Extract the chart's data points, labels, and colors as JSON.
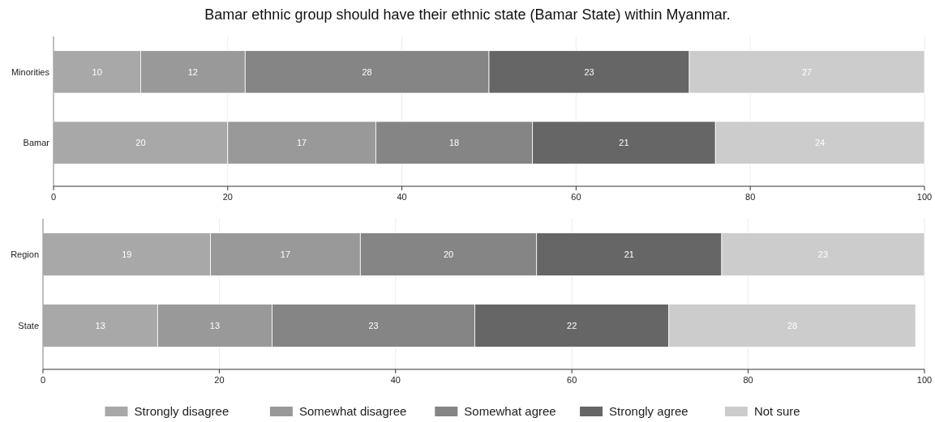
{
  "chart_data": [
    {
      "type": "bar",
      "title": "Bamar ethnic group should have their ethnic state (Bamar State) within Myanmar.",
      "orientation": "horizontal",
      "stacked": true,
      "categories": [
        "Minorities",
        "Bamar"
      ],
      "xlim": [
        0,
        100
      ],
      "xticks": [
        0,
        20,
        40,
        60,
        80,
        100
      ],
      "grid": "x",
      "legend": false,
      "data_labels": true,
      "series": [
        {
          "color": "#a8a8a8",
          "values": [
            10,
            20
          ]
        },
        {
          "color": "#999999",
          "values": [
            12,
            17
          ]
        },
        {
          "color": "#858585",
          "values": [
            28,
            18
          ]
        },
        {
          "color": "#666666",
          "values": [
            23,
            21
          ]
        },
        {
          "color": "#cccccc",
          "values": [
            27,
            24
          ]
        }
      ]
    },
    {
      "type": "bar",
      "orientation": "horizontal",
      "stacked": true,
      "categories": [
        "Region",
        "State"
      ],
      "xlim": [
        0,
        100
      ],
      "xticks": [
        0,
        20,
        40,
        60,
        80,
        100
      ],
      "grid": "x",
      "legend": "bottom",
      "data_labels": true,
      "series": [
        {
          "name": "Strongly disagree",
          "color": "#a8a8a8",
          "values": [
            19,
            13
          ]
        },
        {
          "name": "Somewhat disagree",
          "color": "#999999",
          "values": [
            17,
            13
          ]
        },
        {
          "name": "Somewhat agree",
          "color": "#858585",
          "values": [
            20,
            23
          ]
        },
        {
          "name": "Strongly agree",
          "color": "#666666",
          "values": [
            21,
            22
          ]
        },
        {
          "name": "Not sure",
          "color": "#cccccc",
          "values": [
            23,
            28
          ]
        }
      ]
    }
  ]
}
